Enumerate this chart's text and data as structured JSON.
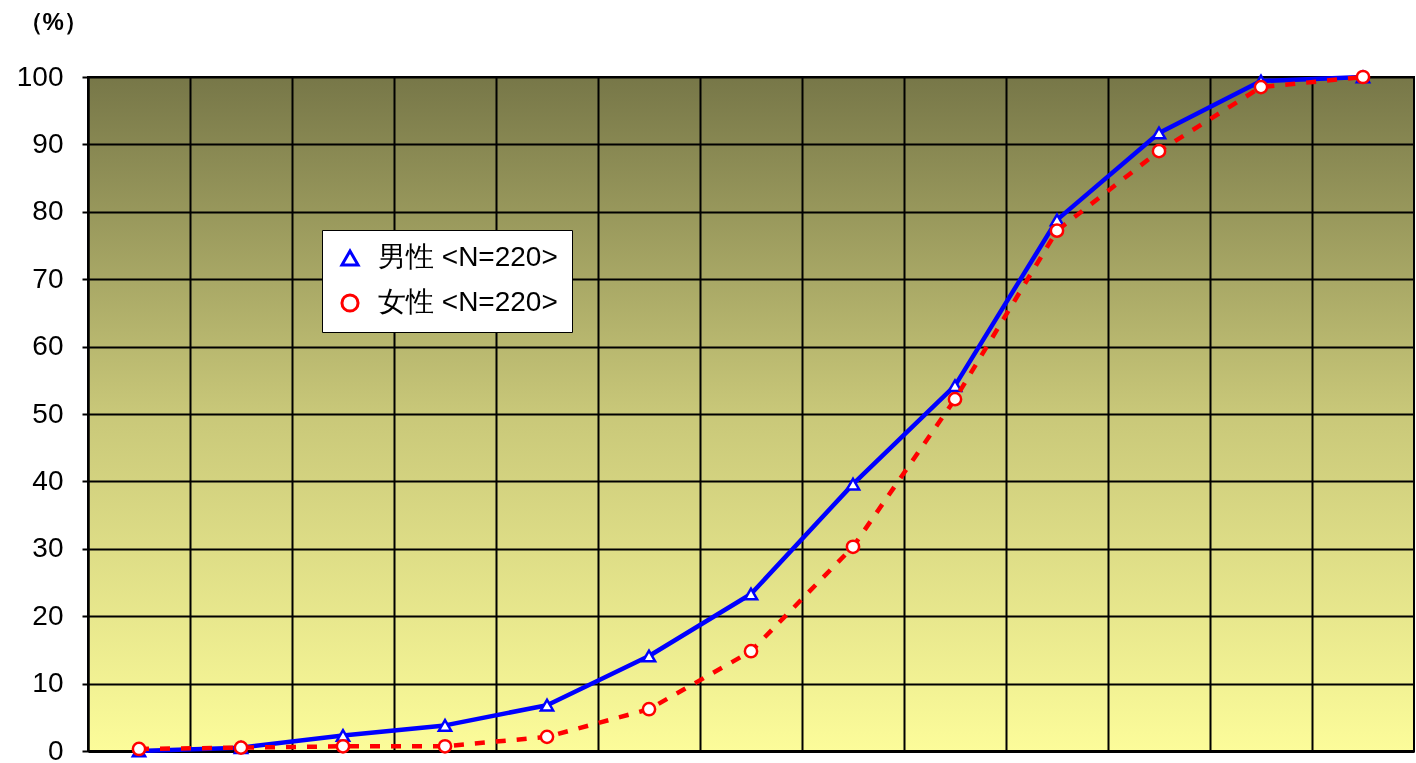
{
  "chart_data": {
    "type": "line",
    "ylabel": "（%）",
    "categories": [
      null,
      null,
      null,
      null,
      null,
      null,
      null,
      null,
      null,
      null,
      null,
      null,
      null
    ],
    "series": [
      {
        "name": "男性 <N=220>",
        "color": "#0000ff",
        "marker": "triangle",
        "line_style": "solid",
        "values": [
          0,
          0.5,
          2.3,
          3.8,
          6.8,
          14.1,
          23.3,
          39.6,
          54.2,
          78.8,
          91.7,
          99.4,
          100
        ]
      },
      {
        "name": "女性 <N=220>",
        "color": "#ff0000",
        "marker": "circle",
        "line_style": "dashed",
        "values": [
          0.3,
          0.5,
          0.7,
          0.7,
          2.1,
          6.2,
          14.8,
          30.3,
          52.2,
          77.2,
          89.0,
          98.5,
          100
        ]
      }
    ],
    "ylim": [
      0,
      100
    ],
    "yticks": [
      0,
      10,
      20,
      30,
      40,
      50,
      60,
      70,
      80,
      90,
      100
    ],
    "grid": true,
    "legend": "top left",
    "tick_labels": "y"
  }
}
